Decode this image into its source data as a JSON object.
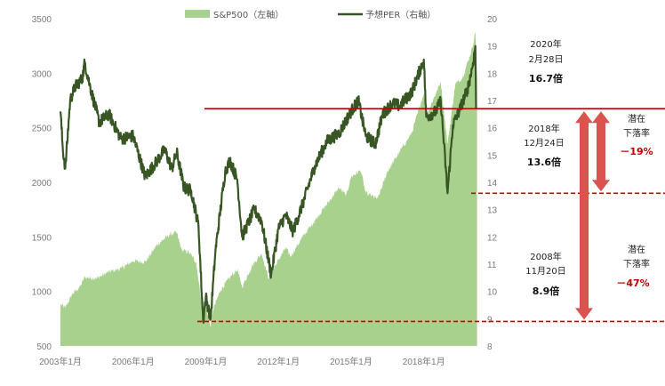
{
  "chart_data": {
    "type": "area+line",
    "legend": {
      "position": "top",
      "items": [
        {
          "label": "S&P500（左軸）",
          "color": "#a9d18e",
          "kind": "area"
        },
        {
          "label": "予想PER（右軸）",
          "color": "#375623",
          "kind": "line"
        }
      ]
    },
    "x_tick_labels": [
      "2003年1月",
      "2006年1月",
      "2009年1月",
      "2012年1月",
      "2015年1月",
      "2018年1月"
    ],
    "left_axis": {
      "min": 500,
      "max": 3500,
      "ticks": [
        "500",
        "1000",
        "1500",
        "2000",
        "2500",
        "3000",
        "3500"
      ]
    },
    "right_axis": {
      "min": 8,
      "max": 20,
      "ticks": [
        "8",
        "9",
        "10",
        "11",
        "12",
        "13",
        "14",
        "15",
        "16",
        "17",
        "18",
        "19",
        "20"
      ]
    },
    "x_range": [
      2003.0,
      2020.25
    ],
    "series": [
      {
        "name": "S&P500（左軸）",
        "axis": "left",
        "color": "#a9d18e",
        "points": [
          [
            2003.0,
            880
          ],
          [
            2003.2,
            850
          ],
          [
            2003.5,
            980
          ],
          [
            2003.8,
            1040
          ],
          [
            2004.0,
            1130
          ],
          [
            2004.5,
            1120
          ],
          [
            2005.0,
            1180
          ],
          [
            2005.5,
            1210
          ],
          [
            2006.0,
            1280
          ],
          [
            2006.5,
            1270
          ],
          [
            2007.0,
            1430
          ],
          [
            2007.5,
            1520
          ],
          [
            2007.8,
            1540
          ],
          [
            2008.0,
            1380
          ],
          [
            2008.3,
            1360
          ],
          [
            2008.6,
            1270
          ],
          [
            2008.8,
            940
          ],
          [
            2008.9,
            860
          ],
          [
            2009.0,
            880
          ],
          [
            2009.2,
            680
          ],
          [
            2009.3,
            830
          ],
          [
            2009.6,
            1010
          ],
          [
            2010.0,
            1130
          ],
          [
            2010.3,
            1200
          ],
          [
            2010.5,
            1040
          ],
          [
            2010.9,
            1230
          ],
          [
            2011.3,
            1350
          ],
          [
            2011.6,
            1120
          ],
          [
            2011.9,
            1250
          ],
          [
            2012.3,
            1400
          ],
          [
            2012.5,
            1320
          ],
          [
            2013.0,
            1500
          ],
          [
            2013.5,
            1650
          ],
          [
            2014.0,
            1800
          ],
          [
            2014.5,
            1950
          ],
          [
            2014.8,
            1880
          ],
          [
            2015.0,
            2050
          ],
          [
            2015.4,
            2110
          ],
          [
            2015.6,
            1900
          ],
          [
            2016.1,
            1850
          ],
          [
            2016.5,
            2100
          ],
          [
            2017.0,
            2280
          ],
          [
            2017.5,
            2450
          ],
          [
            2018.0,
            2820
          ],
          [
            2018.1,
            2610
          ],
          [
            2018.7,
            2920
          ],
          [
            2018.98,
            2350
          ],
          [
            2019.3,
            2900
          ],
          [
            2019.6,
            2960
          ],
          [
            2020.0,
            3230
          ],
          [
            2020.13,
            3380
          ],
          [
            2020.2,
            2950
          ]
        ]
      },
      {
        "name": "予想PER（右軸）",
        "axis": "right",
        "color": "#375623",
        "points": [
          [
            2003.0,
            16.6
          ],
          [
            2003.1,
            15.2
          ],
          [
            2003.2,
            14.5
          ],
          [
            2003.4,
            17.0
          ],
          [
            2003.6,
            17.5
          ],
          [
            2003.9,
            17.8
          ],
          [
            2004.0,
            18.4
          ],
          [
            2004.2,
            17.6
          ],
          [
            2004.6,
            16.2
          ],
          [
            2005.0,
            16.5
          ],
          [
            2005.5,
            15.6
          ],
          [
            2006.0,
            15.7
          ],
          [
            2006.5,
            14.2
          ],
          [
            2007.0,
            14.8
          ],
          [
            2007.3,
            15.2
          ],
          [
            2007.6,
            14.5
          ],
          [
            2007.8,
            15.1
          ],
          [
            2008.1,
            13.8
          ],
          [
            2008.4,
            13.7
          ],
          [
            2008.7,
            12.4
          ],
          [
            2008.89,
            8.9
          ],
          [
            2009.0,
            9.8
          ],
          [
            2009.2,
            9.0
          ],
          [
            2009.4,
            11.5
          ],
          [
            2009.8,
            14.4
          ],
          [
            2010.0,
            14.8
          ],
          [
            2010.3,
            14.1
          ],
          [
            2010.5,
            12.0
          ],
          [
            2011.0,
            13.0
          ],
          [
            2011.3,
            12.6
          ],
          [
            2011.7,
            10.6
          ],
          [
            2012.0,
            12.3
          ],
          [
            2012.3,
            12.8
          ],
          [
            2012.6,
            12.2
          ],
          [
            2013.0,
            13.2
          ],
          [
            2013.5,
            14.6
          ],
          [
            2014.0,
            15.5
          ],
          [
            2014.5,
            15.8
          ],
          [
            2015.0,
            16.6
          ],
          [
            2015.3,
            17.0
          ],
          [
            2015.6,
            15.7
          ],
          [
            2016.0,
            15.4
          ],
          [
            2016.3,
            16.5
          ],
          [
            2016.7,
            16.9
          ],
          [
            2017.0,
            16.8
          ],
          [
            2017.5,
            17.3
          ],
          [
            2018.0,
            18.5
          ],
          [
            2018.1,
            16.4
          ],
          [
            2018.5,
            16.6
          ],
          [
            2018.7,
            17.0
          ],
          [
            2018.98,
            13.6
          ],
          [
            2019.2,
            16.1
          ],
          [
            2019.5,
            16.7
          ],
          [
            2019.8,
            17.4
          ],
          [
            2020.0,
            18.2
          ],
          [
            2020.13,
            19.0
          ],
          [
            2020.16,
            16.7
          ]
        ]
      }
    ],
    "reference_lines": [
      {
        "axis": "right",
        "value": 16.7,
        "style": "solid",
        "color": "#c00000"
      },
      {
        "axis": "right",
        "value": 13.6,
        "style": "dashed",
        "color": "#c00000"
      },
      {
        "axis": "right",
        "value": 8.9,
        "style": "dashed",
        "color": "#c00000"
      }
    ],
    "annotations": [
      {
        "date_line1": "2020年",
        "date_line2": "2月28日",
        "value": "16.7倍"
      },
      {
        "date_line1": "2018年",
        "date_line2": "12月24日",
        "value": "13.6倍"
      },
      {
        "date_line1": "2008年",
        "date_line2": "11月20日",
        "value": "8.9倍"
      }
    ],
    "downside": [
      {
        "line1": "潜在",
        "line2": "下落率",
        "value": "－19%"
      },
      {
        "line1": "潜在",
        "line2": "下落率",
        "value": "－47%"
      }
    ]
  }
}
